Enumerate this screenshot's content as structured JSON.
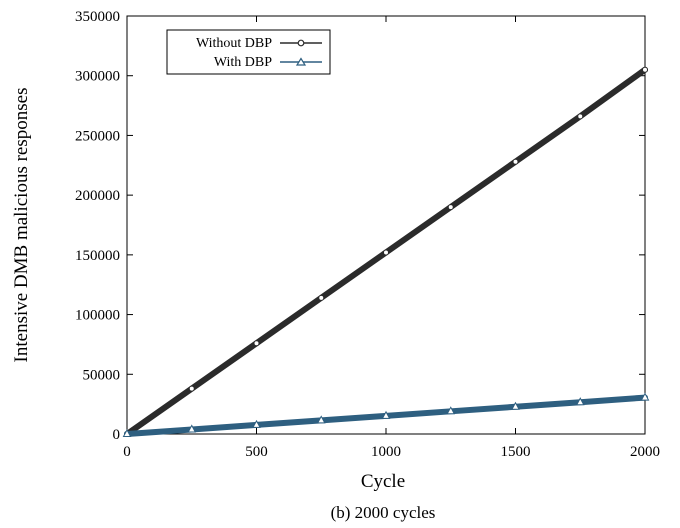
{
  "chart_data": {
    "type": "line",
    "caption": "(b) 2000 cycles",
    "xlabel": "Cycle",
    "ylabel": "Intensive DMB malicious responses",
    "xlim": [
      0,
      2000
    ],
    "ylim": [
      0,
      350000
    ],
    "xticks": [
      0,
      500,
      1000,
      1500,
      2000
    ],
    "yticks": [
      0,
      50000,
      100000,
      150000,
      200000,
      250000,
      300000,
      350000
    ],
    "legend_position": "top-left",
    "grid": false,
    "series": [
      {
        "name": "Without DBP",
        "color": "#2b2b2b",
        "marker": "circle",
        "x": [
          0,
          250,
          500,
          750,
          1000,
          1250,
          1500,
          1750,
          2000
        ],
        "y": [
          0,
          38000,
          76000,
          114000,
          152000,
          190000,
          228000,
          266000,
          305000
        ]
      },
      {
        "name": "With DBP",
        "color": "#2e5f80",
        "marker": "triangle",
        "x": [
          0,
          250,
          500,
          750,
          1000,
          1250,
          1500,
          1750,
          2000
        ],
        "y": [
          0,
          3800,
          7600,
          11400,
          15200,
          19000,
          22800,
          26600,
          30500
        ]
      }
    ]
  }
}
